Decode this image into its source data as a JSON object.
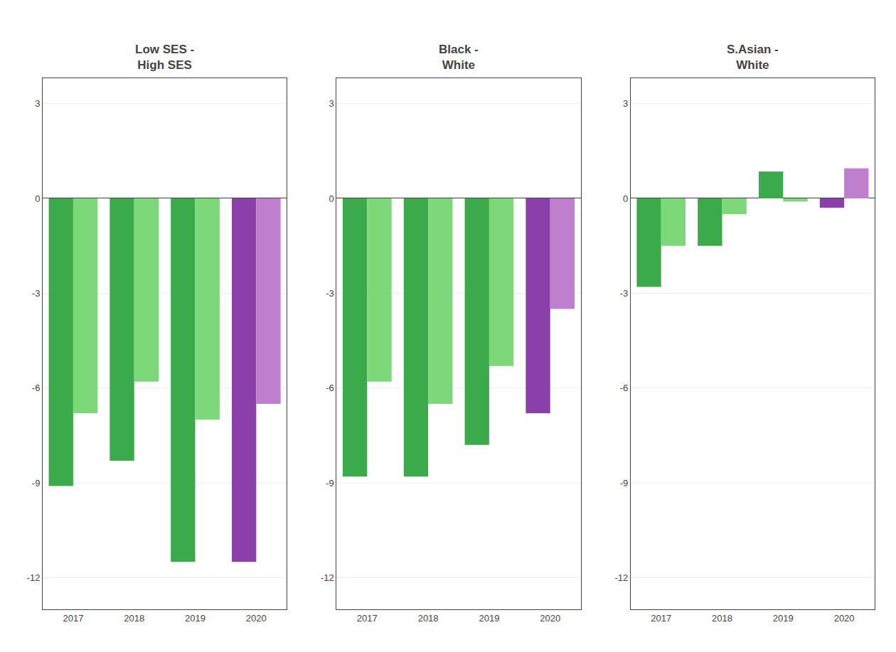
{
  "chart_data": [
    {
      "type": "bar",
      "title": "Low SES -\nHigh SES",
      "categories": [
        "2017",
        "2018",
        "2019",
        "2020"
      ],
      "series": [
        {
          "values": [
            -9.1,
            -8.3,
            -11.5,
            -11.5
          ],
          "colors": [
            "#3aaa4a",
            "#3aaa4a",
            "#3aaa4a",
            "#8b3fa8"
          ]
        },
        {
          "values": [
            -6.8,
            -5.8,
            -7.0,
            -6.5
          ],
          "colors": [
            "#7dd87a",
            "#7dd87a",
            "#7dd87a",
            "#c07fcc"
          ]
        }
      ],
      "ylim": [
        -13.0,
        3.8
      ],
      "yticks": [
        3,
        0,
        -3,
        -6,
        -9,
        -12
      ],
      "grid": true
    },
    {
      "type": "bar",
      "title": "Black -\nWhite",
      "categories": [
        "2017",
        "2018",
        "2019",
        "2020"
      ],
      "series": [
        {
          "values": [
            -8.8,
            -8.8,
            -7.8,
            -6.8
          ],
          "colors": [
            "#3aaa4a",
            "#3aaa4a",
            "#3aaa4a",
            "#8b3fa8"
          ]
        },
        {
          "values": [
            -5.8,
            -6.5,
            -5.3,
            -3.5
          ],
          "colors": [
            "#7dd87a",
            "#7dd87a",
            "#7dd87a",
            "#c07fcc"
          ]
        }
      ],
      "ylim": [
        -13.0,
        3.8
      ],
      "yticks": [
        3,
        0,
        -3,
        -6,
        -9,
        -12
      ],
      "grid": true
    },
    {
      "type": "bar",
      "title": "S.Asian -\nWhite",
      "categories": [
        "2017",
        "2018",
        "2019",
        "2020"
      ],
      "series": [
        {
          "values": [
            -2.8,
            -1.5,
            0.85,
            -0.3
          ],
          "colors": [
            "#3aaa4a",
            "#3aaa4a",
            "#3aaa4a",
            "#8b3fa8"
          ]
        },
        {
          "values": [
            -1.5,
            -0.5,
            -0.1,
            0.95
          ],
          "colors": [
            "#7dd87a",
            "#7dd87a",
            "#7dd87a",
            "#c07fcc"
          ]
        }
      ],
      "ylim": [
        -13.0,
        3.8
      ],
      "yticks": [
        3,
        0,
        -3,
        -6,
        -9,
        -12
      ],
      "grid": true
    }
  ]
}
